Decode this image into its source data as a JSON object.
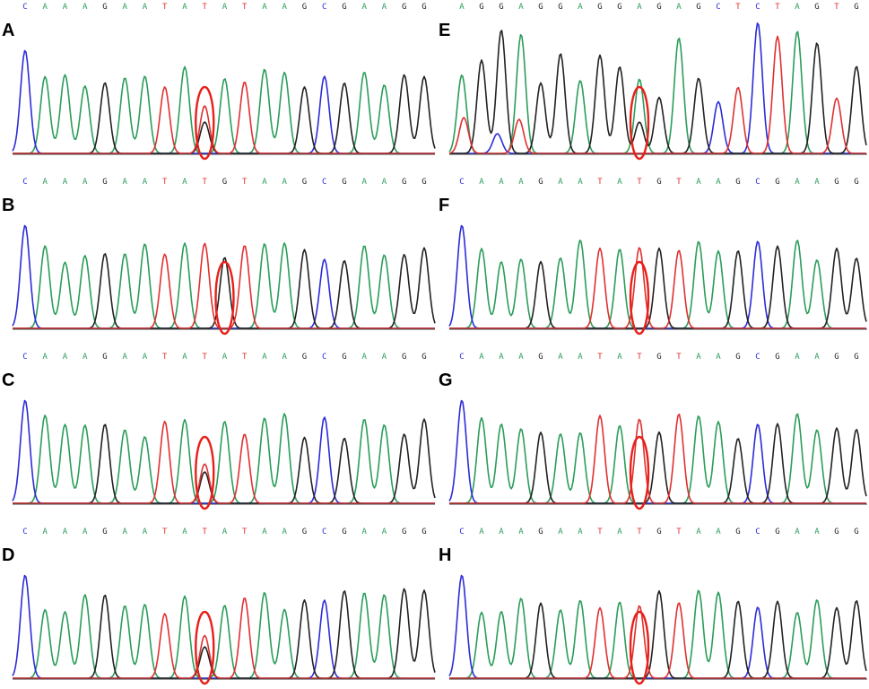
{
  "colors": {
    "A": "#2a9d5a",
    "C": "#2c2cd8",
    "G": "#222222",
    "T": "#e03030",
    "highlight": "#e8201a"
  },
  "panels": [
    {
      "label": "A",
      "sequence": [
        "C",
        "A",
        "A",
        "A",
        "G",
        "A",
        "A",
        "T",
        "A",
        "T",
        "A",
        "T",
        "A",
        "A",
        "G",
        "C",
        "G",
        "A",
        "A",
        "G",
        "G"
      ],
      "heterozygous_index": 9,
      "secondary_base": "G"
    },
    {
      "label": "B",
      "sequence": [
        "C",
        "A",
        "A",
        "A",
        "G",
        "A",
        "A",
        "T",
        "A",
        "T",
        "G",
        "T",
        "A",
        "A",
        "G",
        "C",
        "G",
        "A",
        "A",
        "G",
        "G"
      ],
      "heterozygous_index": 10,
      "secondary_base": "G"
    },
    {
      "label": "C",
      "sequence": [
        "C",
        "A",
        "A",
        "A",
        "G",
        "A",
        "A",
        "T",
        "A",
        "T",
        "A",
        "T",
        "A",
        "A",
        "G",
        "C",
        "G",
        "A",
        "A",
        "G",
        "G"
      ],
      "heterozygous_index": 9,
      "secondary_base": "G"
    },
    {
      "label": "D",
      "sequence": [
        "C",
        "A",
        "A",
        "A",
        "G",
        "A",
        "A",
        "T",
        "A",
        "T",
        "A",
        "T",
        "A",
        "A",
        "G",
        "C",
        "G",
        "A",
        "A",
        "G",
        "G"
      ],
      "heterozygous_index": 9,
      "secondary_base": "G"
    },
    {
      "label": "E",
      "sequence": [
        "A",
        "G",
        "G",
        "A",
        "G",
        "G",
        "A",
        "G",
        "G",
        "A",
        "G",
        "A",
        "G",
        "C",
        "T",
        "C",
        "T",
        "A",
        "G",
        "T",
        "G"
      ],
      "heterozygous_index": 9,
      "secondary_base": "G",
      "noisy": true
    },
    {
      "label": "F",
      "sequence": [
        "C",
        "A",
        "A",
        "A",
        "G",
        "A",
        "A",
        "T",
        "A",
        "T",
        "G",
        "T",
        "A",
        "A",
        "G",
        "C",
        "G",
        "A",
        "A",
        "G",
        "G"
      ],
      "heterozygous_index": 9,
      "secondary_base": "T"
    },
    {
      "label": "G",
      "sequence": [
        "C",
        "A",
        "A",
        "A",
        "G",
        "A",
        "A",
        "T",
        "A",
        "T",
        "G",
        "T",
        "A",
        "A",
        "G",
        "C",
        "G",
        "A",
        "A",
        "G",
        "G"
      ],
      "heterozygous_index": 9,
      "secondary_base": "T"
    },
    {
      "label": "H",
      "sequence": [
        "C",
        "A",
        "A",
        "A",
        "G",
        "A",
        "A",
        "T",
        "A",
        "T",
        "G",
        "T",
        "A",
        "A",
        "G",
        "C",
        "G",
        "A",
        "A",
        "G",
        "G"
      ],
      "heterozygous_index": 9,
      "secondary_base": "T"
    }
  ]
}
